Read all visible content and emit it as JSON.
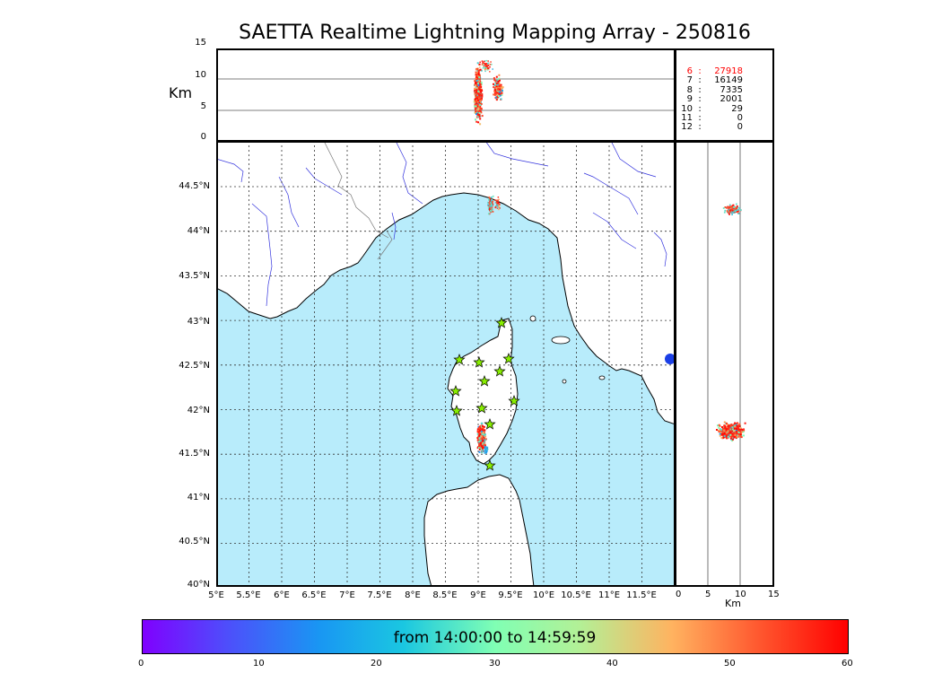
{
  "title": "SAETTA Realtime Lightning Mapping Array - 250816",
  "altitude_panel": {
    "ylabel": "Km",
    "yticks": [
      "15",
      "10",
      "5",
      "0"
    ]
  },
  "station_counts": [
    {
      "stations": "6",
      "count": "27918",
      "color": "#ff0000"
    },
    {
      "stations": "7",
      "count": "16149",
      "color": "#000000"
    },
    {
      "stations": "8",
      "count": "7335",
      "color": "#000000"
    },
    {
      "stations": "9",
      "count": "2001",
      "color": "#000000"
    },
    {
      "stations": "10",
      "count": "29",
      "color": "#000000"
    },
    {
      "stations": "11",
      "count": "0",
      "color": "#000000"
    },
    {
      "stations": "12",
      "count": "0",
      "color": "#000000"
    }
  ],
  "map": {
    "lat_ticks": [
      "44.5°N",
      "44°N",
      "43.5°N",
      "43°N",
      "42.5°N",
      "42°N",
      "41.5°N",
      "41°N",
      "40.5°N",
      "40°N"
    ],
    "lon_ticks": [
      "5°E",
      "5.5°E",
      "6°E",
      "6.5°E",
      "7°E",
      "7.5°E",
      "8°E",
      "8.5°E",
      "9°E",
      "9.5°E",
      "10°E",
      "10.5°E",
      "11°E",
      "11.5°E"
    ],
    "sea_color": "#b8ecfb",
    "land_color": "#ffffff",
    "coast_color": "#000000",
    "river_color": "#3333dd",
    "station_color": "#88ee00"
  },
  "side_panel": {
    "xlabel": "Km",
    "xticks": [
      "0",
      "5",
      "10",
      "15"
    ]
  },
  "colorbar": {
    "label": "from 14:00:00 to 14:59:59",
    "ticks": [
      "0",
      "10",
      "20",
      "30",
      "40",
      "50",
      "60"
    ],
    "colormap": "rainbow"
  }
}
